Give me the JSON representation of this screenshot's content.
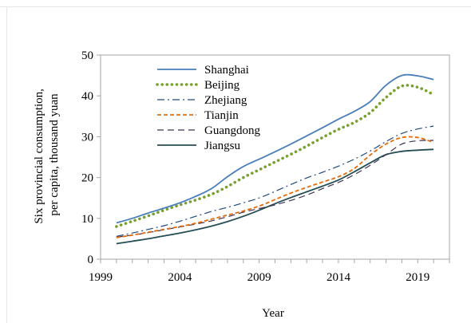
{
  "chart_data": {
    "type": "line",
    "title": "",
    "xlabel": "Year",
    "ylabel": "Six provincial consumption, per capita, thousand yuan",
    "ylabel_lines": [
      "Six provincial consumption,",
      "per capita, thousand yuan"
    ],
    "xlim": [
      1999,
      2021
    ],
    "ylim": [
      0,
      50
    ],
    "xticks": [
      1999,
      2004,
      2009,
      2014,
      2019
    ],
    "yticks": [
      0,
      10,
      20,
      30,
      40,
      50
    ],
    "grid": false,
    "legend_position": "top-left",
    "x": [
      2000,
      2001,
      2002,
      2003,
      2004,
      2005,
      2006,
      2007,
      2008,
      2009,
      2010,
      2011,
      2012,
      2013,
      2014,
      2015,
      2016,
      2017,
      2018,
      2019,
      2020
    ],
    "series": [
      {
        "name": "Shanghai",
        "color": "#4a7ebb",
        "dash": "solid",
        "width": 1.8,
        "values": [
          8.9,
          10.0,
          11.3,
          12.5,
          13.8,
          15.4,
          17.3,
          20.2,
          22.7,
          24.5,
          26.3,
          28.2,
          30.2,
          32.2,
          34.3,
          36.2,
          38.6,
          42.6,
          45.0,
          44.9,
          44.0
        ]
      },
      {
        "name": "Beijing",
        "color": "#77a02e",
        "dash": "dot",
        "width": 3.6,
        "values": [
          8.0,
          9.3,
          10.6,
          12.0,
          13.3,
          14.5,
          15.9,
          17.8,
          20.0,
          21.9,
          23.8,
          25.7,
          27.7,
          29.8,
          31.8,
          33.5,
          35.9,
          39.6,
          42.4,
          42.1,
          40.3
        ]
      },
      {
        "name": "Zhejiang",
        "color": "#1f497d",
        "dash": "dashdot",
        "width": 1.2,
        "values": [
          5.6,
          6.4,
          7.3,
          8.2,
          9.3,
          10.5,
          11.7,
          12.7,
          13.8,
          15.0,
          16.6,
          18.3,
          19.9,
          21.3,
          22.8,
          24.5,
          26.5,
          28.8,
          30.8,
          31.9,
          32.6
        ]
      },
      {
        "name": "Tianjin",
        "color": "#e46c0a",
        "dash": "dash",
        "width": 1.8,
        "values": [
          5.3,
          5.9,
          6.6,
          7.3,
          8.0,
          8.8,
          9.8,
          10.8,
          11.8,
          13.0,
          14.6,
          16.2,
          17.6,
          18.9,
          20.2,
          22.2,
          25.5,
          28.2,
          29.8,
          29.8,
          28.6
        ]
      },
      {
        "name": "Guangdong",
        "color": "#403152",
        "dash": "longdash",
        "width": 1.2,
        "values": [
          5.4,
          5.9,
          6.5,
          7.2,
          7.9,
          8.6,
          9.4,
          10.4,
          11.5,
          12.4,
          13.3,
          14.4,
          15.7,
          17.3,
          18.8,
          20.7,
          23.0,
          25.6,
          28.2,
          29.0,
          29.1
        ]
      },
      {
        "name": "Jiangsu",
        "color": "#254d55",
        "dash": "solid",
        "width": 1.8,
        "values": [
          3.8,
          4.4,
          5.0,
          5.7,
          6.4,
          7.2,
          8.1,
          9.2,
          10.5,
          12.0,
          13.6,
          15.1,
          16.5,
          17.9,
          19.4,
          21.4,
          23.6,
          25.6,
          26.4,
          26.7,
          26.9
        ]
      }
    ]
  }
}
